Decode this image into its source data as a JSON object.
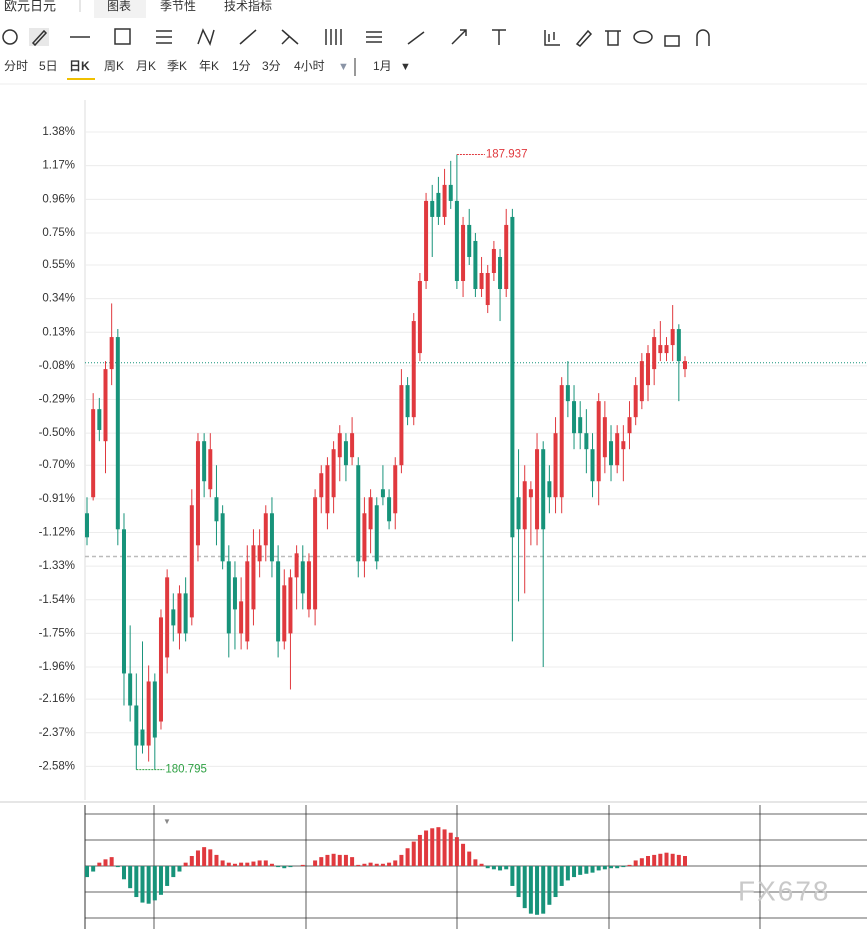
{
  "tabs": [
    "欧元日元",
    "图表",
    "季节性",
    "技术指标"
  ],
  "timeframes": [
    "分时",
    "5日",
    "日K",
    "周K",
    "月K",
    "季K",
    "年K",
    "1分",
    "3分",
    "4小时"
  ],
  "period": "1月",
  "watermark": "FX678",
  "chart_data": {
    "type": "candlestick",
    "up_color": "#e0393e",
    "down_color": "#17937a",
    "ylim": [
      -2.79,
      1.58
    ],
    "yticks": [
      {
        "value": 1.38,
        "label": "1.38%"
      },
      {
        "value": 1.17,
        "label": "1.17%"
      },
      {
        "value": 0.96,
        "label": "0.96%"
      },
      {
        "value": 0.75,
        "label": "0.75%"
      },
      {
        "value": 0.55,
        "label": "0.55%"
      },
      {
        "value": 0.34,
        "label": "0.34%"
      },
      {
        "value": 0.13,
        "label": "0.13%"
      },
      {
        "value": -0.08,
        "label": "-0.08%"
      },
      {
        "value": -0.29,
        "label": "-0.29%"
      },
      {
        "value": -0.5,
        "label": "-0.50%"
      },
      {
        "value": -0.7,
        "label": "-0.70%"
      },
      {
        "value": -0.91,
        "label": "-0.91%"
      },
      {
        "value": -1.12,
        "label": "-1.12%"
      },
      {
        "value": -1.33,
        "label": "-1.33%"
      },
      {
        "value": -1.54,
        "label": "-1.54%"
      },
      {
        "value": -1.75,
        "label": "-1.75%"
      },
      {
        "value": -1.96,
        "label": "-1.96%"
      },
      {
        "value": -2.16,
        "label": "-2.16%"
      },
      {
        "value": -2.37,
        "label": "-2.37%"
      },
      {
        "value": -2.58,
        "label": "-2.58%"
      }
    ],
    "grid": true,
    "last_line": -0.06,
    "ref_line": -1.27,
    "high_label": {
      "index": 60,
      "value": 1.24,
      "label": "187.937"
    },
    "low_label": {
      "index": 8,
      "value": -2.6,
      "label": "180.795"
    },
    "candles": [
      [
        -1.0,
        -0.9,
        -1.2,
        -1.15
      ],
      [
        -0.9,
        -0.25,
        -0.92,
        -0.35
      ],
      [
        -0.35,
        -0.28,
        -0.55,
        -0.48
      ],
      [
        -0.55,
        -0.05,
        -0.75,
        -0.1
      ],
      [
        -0.1,
        0.31,
        -0.2,
        0.1
      ],
      [
        0.1,
        0.15,
        -1.2,
        -1.1
      ],
      [
        -1.1,
        -1.0,
        -2.2,
        -2.0
      ],
      [
        -2.0,
        -1.7,
        -2.3,
        -2.2
      ],
      [
        -2.2,
        -2.0,
        -2.6,
        -2.45
      ],
      [
        -2.35,
        -1.8,
        -2.5,
        -2.45
      ],
      [
        -2.45,
        -1.95,
        -2.55,
        -2.05
      ],
      [
        -2.05,
        -2.0,
        -2.6,
        -2.4
      ],
      [
        -2.3,
        -1.6,
        -2.35,
        -1.65
      ],
      [
        -1.9,
        -1.35,
        -2.0,
        -1.4
      ],
      [
        -1.6,
        -1.5,
        -1.8,
        -1.7
      ],
      [
        -1.75,
        -1.45,
        -1.85,
        -1.5
      ],
      [
        -1.5,
        -1.4,
        -1.8,
        -1.75
      ],
      [
        -1.65,
        -0.85,
        -1.7,
        -0.95
      ],
      [
        -1.2,
        -0.5,
        -1.3,
        -0.55
      ],
      [
        -0.55,
        -0.5,
        -0.9,
        -0.8
      ],
      [
        -0.85,
        -0.5,
        -0.9,
        -0.6
      ],
      [
        -0.9,
        -0.7,
        -1.2,
        -1.05
      ],
      [
        -1.0,
        -0.95,
        -1.35,
        -1.3
      ],
      [
        -1.3,
        -1.2,
        -1.9,
        -1.75
      ],
      [
        -1.4,
        -1.3,
        -1.85,
        -1.6
      ],
      [
        -1.75,
        -1.4,
        -1.85,
        -1.55
      ],
      [
        -1.8,
        -1.2,
        -1.85,
        -1.3
      ],
      [
        -1.6,
        -1.1,
        -1.7,
        -1.2
      ],
      [
        -1.3,
        -1.1,
        -1.4,
        -1.2
      ],
      [
        -1.2,
        -0.95,
        -1.3,
        -1.0
      ],
      [
        -1.0,
        -0.9,
        -1.4,
        -1.3
      ],
      [
        -1.3,
        -1.2,
        -1.9,
        -1.8
      ],
      [
        -1.8,
        -1.35,
        -1.85,
        -1.45
      ],
      [
        -1.75,
        -1.35,
        -2.1,
        -1.4
      ],
      [
        -1.4,
        -1.2,
        -1.6,
        -1.25
      ],
      [
        -1.3,
        -1.2,
        -1.6,
        -1.5
      ],
      [
        -1.6,
        -1.25,
        -1.65,
        -1.3
      ],
      [
        -1.6,
        -0.85,
        -1.7,
        -0.9
      ],
      [
        -0.9,
        -0.7,
        -1.0,
        -0.75
      ],
      [
        -1.0,
        -0.65,
        -1.1,
        -0.7
      ],
      [
        -0.9,
        -0.55,
        -1.0,
        -0.6
      ],
      [
        -0.65,
        -0.45,
        -0.8,
        -0.5
      ],
      [
        -0.55,
        -0.5,
        -0.8,
        -0.7
      ],
      [
        -0.65,
        -0.4,
        -0.7,
        -0.5
      ],
      [
        -0.7,
        -0.65,
        -1.4,
        -1.3
      ],
      [
        -1.3,
        -0.9,
        -1.4,
        -1.0
      ],
      [
        -1.1,
        -0.85,
        -1.25,
        -0.9
      ],
      [
        -0.95,
        -0.9,
        -1.35,
        -1.3
      ],
      [
        -0.85,
        -0.7,
        -0.95,
        -0.9
      ],
      [
        -0.9,
        -0.85,
        -1.1,
        -1.05
      ],
      [
        -1.0,
        -0.65,
        -1.1,
        -0.7
      ],
      [
        -0.7,
        -0.1,
        -0.75,
        -0.2
      ],
      [
        -0.2,
        -0.15,
        -0.45,
        -0.4
      ],
      [
        -0.4,
        0.25,
        -0.45,
        0.2
      ],
      [
        0.0,
        0.5,
        -0.05,
        0.45
      ],
      [
        0.45,
        1.0,
        0.4,
        0.95
      ],
      [
        0.95,
        1.05,
        0.6,
        0.85
      ],
      [
        1.0,
        1.1,
        0.8,
        0.85
      ],
      [
        0.85,
        1.15,
        0.8,
        1.05
      ],
      [
        1.05,
        1.2,
        0.9,
        0.95
      ],
      [
        0.95,
        1.24,
        0.4,
        0.45
      ],
      [
        0.45,
        0.85,
        0.35,
        0.8
      ],
      [
        0.8,
        0.9,
        0.55,
        0.6
      ],
      [
        0.7,
        0.75,
        0.35,
        0.4
      ],
      [
        0.4,
        0.6,
        0.35,
        0.5
      ],
      [
        0.3,
        0.55,
        0.25,
        0.5
      ],
      [
        0.5,
        0.7,
        0.45,
        0.65
      ],
      [
        0.6,
        0.65,
        0.2,
        0.4
      ],
      [
        0.4,
        0.9,
        0.35,
        0.8
      ],
      [
        0.85,
        0.9,
        -1.8,
        -1.15
      ],
      [
        -0.9,
        -0.6,
        -1.55,
        -1.1
      ],
      [
        -1.1,
        -0.7,
        -1.5,
        -0.8
      ],
      [
        -0.9,
        -0.8,
        -1.2,
        -0.85
      ],
      [
        -1.1,
        -0.5,
        -1.2,
        -0.6
      ],
      [
        -0.6,
        -0.55,
        -1.96,
        -1.1
      ],
      [
        -0.8,
        -0.7,
        -1.0,
        -0.9
      ],
      [
        -0.9,
        -0.4,
        -1.0,
        -0.5
      ],
      [
        -0.9,
        -0.15,
        -1.0,
        -0.2
      ],
      [
        -0.2,
        -0.05,
        -0.4,
        -0.3
      ],
      [
        -0.3,
        -0.2,
        -0.6,
        -0.5
      ],
      [
        -0.4,
        -0.3,
        -0.6,
        -0.5
      ],
      [
        -0.5,
        -0.35,
        -0.75,
        -0.6
      ],
      [
        -0.6,
        -0.5,
        -0.9,
        -0.8
      ],
      [
        -0.8,
        -0.25,
        -0.95,
        -0.3
      ],
      [
        -0.65,
        -0.3,
        -0.75,
        -0.4
      ],
      [
        -0.55,
        -0.45,
        -0.8,
        -0.7
      ],
      [
        -0.7,
        -0.45,
        -0.75,
        -0.5
      ],
      [
        -0.6,
        -0.45,
        -0.8,
        -0.55
      ],
      [
        -0.5,
        -0.3,
        -0.6,
        -0.4
      ],
      [
        -0.4,
        -0.15,
        -0.45,
        -0.2
      ],
      [
        -0.3,
        0.0,
        -0.35,
        -0.05
      ],
      [
        -0.2,
        0.05,
        -0.3,
        0.0
      ],
      [
        -0.1,
        0.15,
        -0.2,
        0.1
      ],
      [
        0.0,
        0.2,
        -0.05,
        0.05
      ],
      [
        0.0,
        0.1,
        -0.05,
        0.05
      ],
      [
        0.05,
        0.3,
        -0.05,
        0.15
      ],
      [
        0.15,
        0.18,
        -0.3,
        -0.05
      ],
      [
        -0.1,
        -0.02,
        -0.15,
        -0.05
      ]
    ],
    "macd_ylim": [
      -4.6,
      5.5
    ],
    "macd": [
      -1.0,
      -0.5,
      0.3,
      0.6,
      0.8,
      -0.1,
      -1.2,
      -2.0,
      -2.8,
      -3.3,
      -3.4,
      -3.1,
      -2.6,
      -1.8,
      -1.0,
      -0.5,
      0.3,
      0.9,
      1.4,
      1.7,
      1.5,
      1.0,
      0.5,
      0.3,
      0.2,
      0.3,
      0.3,
      0.4,
      0.5,
      0.5,
      0.2,
      -0.1,
      -0.2,
      -0.1,
      0.0,
      0.1,
      0.0,
      0.5,
      0.8,
      1.0,
      1.1,
      1.0,
      1.0,
      0.8,
      0.1,
      0.2,
      0.3,
      0.2,
      0.2,
      0.3,
      0.5,
      1.0,
      1.6,
      2.2,
      2.8,
      3.2,
      3.4,
      3.5,
      3.3,
      3.0,
      2.6,
      2.0,
      1.3,
      0.6,
      0.2,
      -0.2,
      -0.3,
      -0.4,
      -0.3,
      -1.8,
      -2.8,
      -3.8,
      -4.3,
      -4.4,
      -4.3,
      -3.5,
      -2.8,
      -1.8,
      -1.3,
      -1.0,
      -0.8,
      -0.7,
      -0.6,
      -0.4,
      -0.3,
      -0.2,
      -0.2,
      -0.1,
      0.1,
      0.5,
      0.7,
      0.9,
      1.0,
      1.1,
      1.2,
      1.1,
      1.0,
      0.9
    ]
  }
}
